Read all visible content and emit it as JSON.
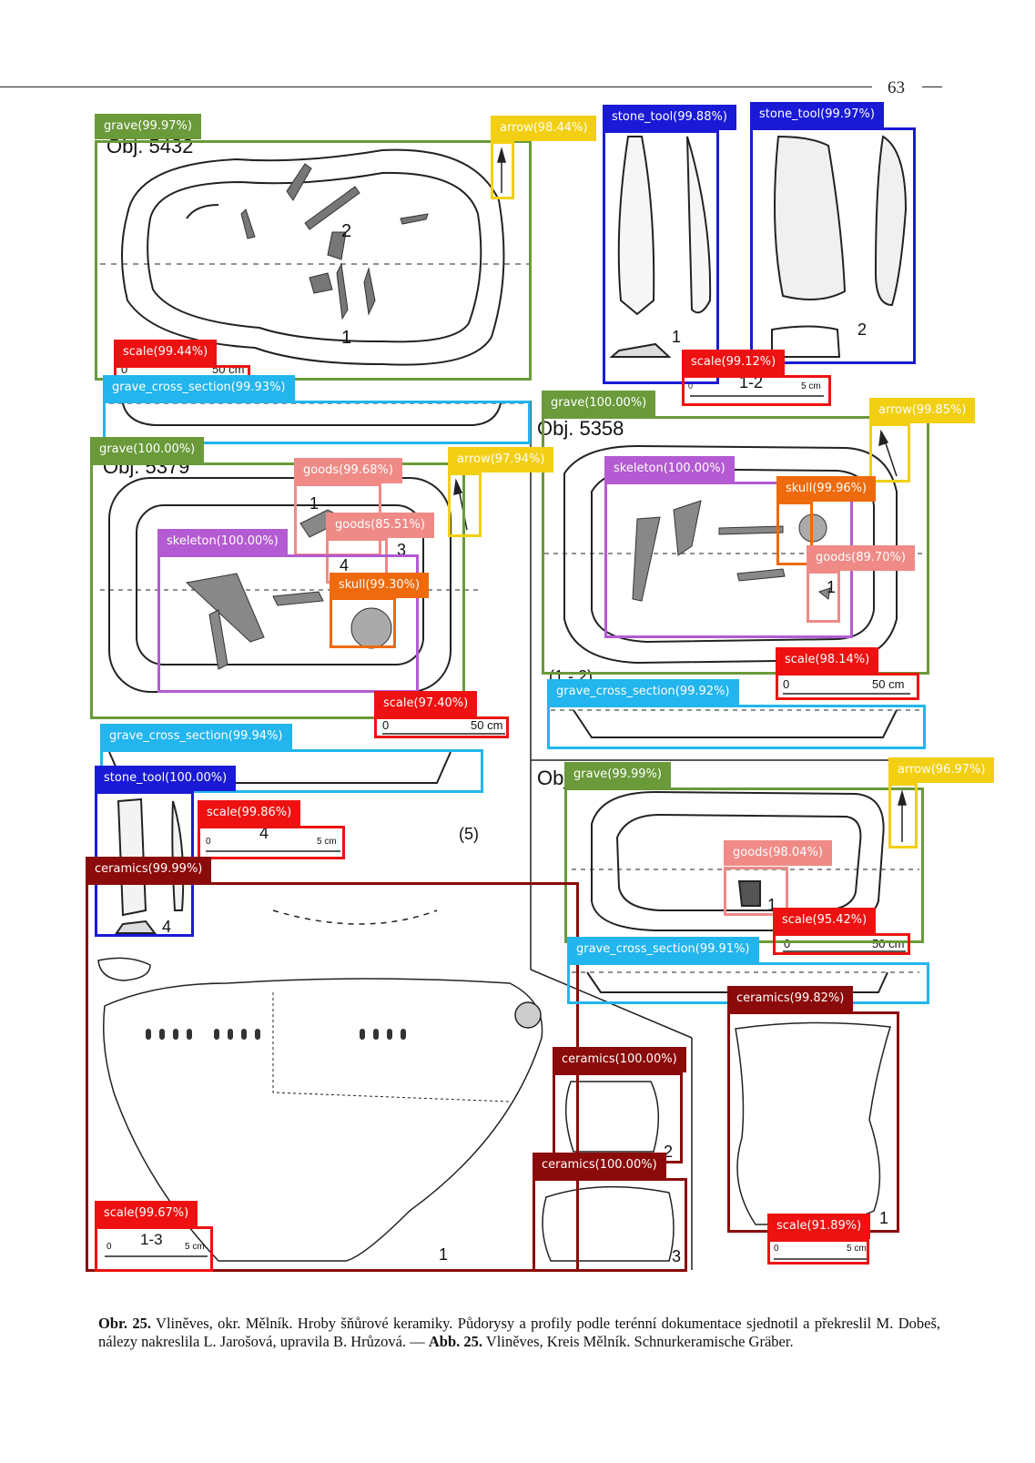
{
  "page": {
    "number": "63"
  },
  "colors": {
    "grave": "#6a9a3a",
    "arrow": "#f2cf12",
    "stone_tool": "#1a1ad6",
    "scale": "#ee1111",
    "grave_cross_section": "#22b5ee",
    "goods": "#ef8a86",
    "skeleton": "#b45ad2",
    "skull": "#ee6a0c",
    "ceramics": "#8b0a0a"
  },
  "figure_labels": {
    "obj_5432": "Obj. 5432",
    "obj_5379": "Obj. 5379",
    "obj_5358": "Obj. 5358",
    "obj_partial": "Obj",
    "n1": "1",
    "n2": "2",
    "n3": "3",
    "n4": "4",
    "n5": "(5)",
    "n1_2": "1-2",
    "n1_3": "1-3",
    "n1_2b": "(1 - 2)",
    "s0": "0",
    "s50": "50 cm",
    "s5": "5 cm"
  },
  "detections": [
    {
      "label": "grave(99.97%)",
      "cls": "grave"
    },
    {
      "label": "arrow(98.44%)",
      "cls": "arrow"
    },
    {
      "label": "stone_tool(99.88%)",
      "cls": "stone_tool"
    },
    {
      "label": "stone_tool(99.97%)",
      "cls": "stone_tool"
    },
    {
      "label": "scale(99.44%)",
      "cls": "scale"
    },
    {
      "label": "scale(99.12%)",
      "cls": "scale"
    },
    {
      "label": "grave_cross_section(99.93%)",
      "cls": "grave_cross_section"
    },
    {
      "label": "grave(100.00%)",
      "cls": "grave"
    },
    {
      "label": "arrow(99.85%)",
      "cls": "arrow"
    },
    {
      "label": "grave(100.00%)",
      "cls": "grave"
    },
    {
      "label": "goods(99.68%)",
      "cls": "goods"
    },
    {
      "label": "arrow(97.94%)",
      "cls": "arrow"
    },
    {
      "label": "skeleton(100.00%)",
      "cls": "skeleton"
    },
    {
      "label": "skull(99.96%)",
      "cls": "skull"
    },
    {
      "label": "goods(85.51%)",
      "cls": "goods"
    },
    {
      "label": "skeleton(100.00%)",
      "cls": "skeleton"
    },
    {
      "label": "goods(89.70%)",
      "cls": "goods"
    },
    {
      "label": "skull(99.30%)",
      "cls": "skull"
    },
    {
      "label": "scale(98.14%)",
      "cls": "scale"
    },
    {
      "label": "scale(97.40%)",
      "cls": "scale"
    },
    {
      "label": "grave_cross_section(99.92%)",
      "cls": "grave_cross_section"
    },
    {
      "label": "grave_cross_section(99.94%)",
      "cls": "grave_cross_section"
    },
    {
      "label": "grave(99.99%)",
      "cls": "grave"
    },
    {
      "label": "arrow(96.97%)",
      "cls": "arrow"
    },
    {
      "label": "stone_tool(100.00%)",
      "cls": "stone_tool"
    },
    {
      "label": "scale(99.86%)",
      "cls": "scale"
    },
    {
      "label": "goods(98.04%)",
      "cls": "goods"
    },
    {
      "label": "ceramics(99.99%)",
      "cls": "ceramics"
    },
    {
      "label": "scale(95.42%)",
      "cls": "scale"
    },
    {
      "label": "grave_cross_section(99.91%)",
      "cls": "grave_cross_section"
    },
    {
      "label": "ceramics(99.82%)",
      "cls": "ceramics"
    },
    {
      "label": "ceramics(100.00%)",
      "cls": "ceramics"
    },
    {
      "label": "ceramics(100.00%)",
      "cls": "ceramics"
    },
    {
      "label": "scale(99.67%)",
      "cls": "scale"
    },
    {
      "label": "scale(91.89%)",
      "cls": "scale"
    }
  ],
  "caption": {
    "de_abbr": "Obr. 25.",
    "cz_text": " Vliněves, okr. Mělník. Hroby šňůrové keramiky. Půdorysy a profily podle terénní dokumentace sjednotil a překreslil M. Dobeš, nálezy nakreslila L. Jarošová, upravila B. Hrůzová. — ",
    "en_abbr": "Abb. 25.",
    "en_text": " Vliněves, Kreis Mělník. Schnurkeramische Gräber."
  }
}
